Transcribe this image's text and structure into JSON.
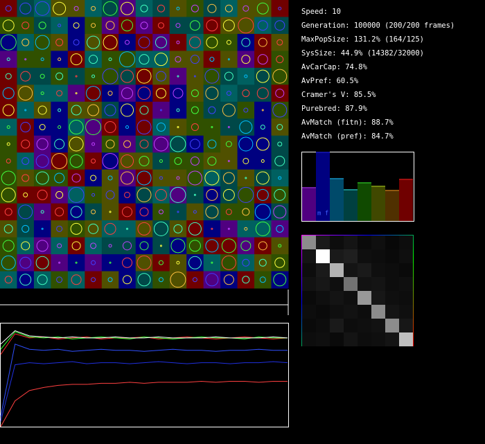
{
  "stats": [
    "Speed: 10",
    "Generation: 100000 (200/200 frames)",
    "MaxPopSize: 131.2% (164/125)",
    "SysSize: 44.9% (14382/32000)",
    "AvCarCap: 74.8%",
    "AvPref: 60.5%",
    "Cramer's V: 85.5%",
    "Purebred: 87.9%",
    "AvMatch (fitn): 88.7%",
    "AvMatch (pref): 84.7%"
  ],
  "histogram": {
    "label": "m f",
    "ylim": [
      0,
      100
    ],
    "values": [
      49,
      100,
      62,
      46,
      56,
      51,
      45,
      61
    ],
    "colors": [
      "#500080",
      "#000080",
      "#004a6a",
      "#004040",
      "#104a00",
      "#404800",
      "#503000",
      "#700000"
    ],
    "tops": [
      "#9040c0",
      "#2020c0",
      "#20a0d0",
      "#30d0d0",
      "#30d030",
      "#a0c020",
      "#d08020",
      "#d02020"
    ]
  },
  "matrix": [
    [
      0.55,
      0.1,
      0.05,
      0.08,
      0.04,
      0.06,
      0.03,
      0.05
    ],
    [
      0.08,
      1.0,
      0.1,
      0.12,
      0.06,
      0.05,
      0.04,
      0.06
    ],
    [
      0.05,
      0.1,
      0.7,
      0.08,
      0.1,
      0.06,
      0.05,
      0.04
    ],
    [
      0.07,
      0.09,
      0.06,
      0.45,
      0.07,
      0.08,
      0.05,
      0.06
    ],
    [
      0.04,
      0.06,
      0.08,
      0.06,
      0.6,
      0.09,
      0.06,
      0.05
    ],
    [
      0.05,
      0.04,
      0.06,
      0.07,
      0.05,
      0.55,
      0.08,
      0.06
    ],
    [
      0.04,
      0.05,
      0.1,
      0.05,
      0.06,
      0.07,
      0.55,
      0.09
    ],
    [
      0.05,
      0.06,
      0.04,
      0.08,
      0.05,
      0.06,
      0.08,
      0.75
    ]
  ],
  "timeseries": {
    "ylim": [
      0,
      1
    ],
    "series": [
      {
        "color": "#ff3030",
        "values": [
          0.7,
          0.9,
          0.86,
          0.87,
          0.85,
          0.86,
          0.87,
          0.85,
          0.86,
          0.86,
          0.87,
          0.85,
          0.86,
          0.87,
          0.86,
          0.85,
          0.86,
          0.87,
          0.86,
          0.85,
          0.86
        ]
      },
      {
        "color": "#30ff30",
        "values": [
          0.75,
          0.92,
          0.87,
          0.86,
          0.87,
          0.85,
          0.86,
          0.87,
          0.86,
          0.85,
          0.87,
          0.86,
          0.85,
          0.86,
          0.87,
          0.86,
          0.86,
          0.85,
          0.87,
          0.86,
          0.86
        ]
      },
      {
        "color": "#ffffff",
        "values": [
          0.8,
          0.93,
          0.88,
          0.87,
          0.86,
          0.87,
          0.86,
          0.86,
          0.87,
          0.86,
          0.86,
          0.87,
          0.86,
          0.86,
          0.86,
          0.87,
          0.86,
          0.86,
          0.86,
          0.87,
          0.86
        ]
      },
      {
        "color": "#3050ff",
        "values": [
          0.1,
          0.8,
          0.75,
          0.74,
          0.75,
          0.73,
          0.74,
          0.75,
          0.74,
          0.74,
          0.73,
          0.74,
          0.75,
          0.74,
          0.74,
          0.73,
          0.74,
          0.74,
          0.75,
          0.74,
          0.74
        ]
      },
      {
        "color": "#2030e0",
        "values": [
          0.05,
          0.6,
          0.62,
          0.61,
          0.62,
          0.63,
          0.61,
          0.62,
          0.62,
          0.61,
          0.62,
          0.63,
          0.62,
          0.61,
          0.62,
          0.62,
          0.61,
          0.62,
          0.62,
          0.63,
          0.62
        ]
      },
      {
        "color": "#ff4040",
        "values": [
          0.0,
          0.25,
          0.35,
          0.38,
          0.4,
          0.41,
          0.41,
          0.42,
          0.42,
          0.43,
          0.42,
          0.43,
          0.43,
          0.43,
          0.44,
          0.43,
          0.44,
          0.44,
          0.43,
          0.44,
          0.44
        ]
      }
    ]
  }
}
